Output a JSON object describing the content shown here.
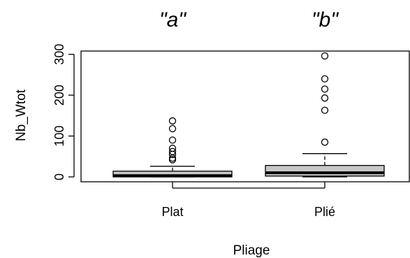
{
  "chart_data": {
    "type": "boxplot",
    "xlabel": "Pliage",
    "ylabel": "Nb_Wtot",
    "yticks": [
      0,
      100,
      200,
      300
    ],
    "ylim": [
      -12,
      308
    ],
    "grid": false,
    "colors": {
      "box_fill": "#c8c8c8",
      "line": "#000000"
    },
    "groups": [
      {
        "category": "Plat",
        "significance": "\"a\"",
        "min": 0,
        "q1": 0,
        "median": 3,
        "q3": 14,
        "max": 26,
        "outliers": [
          42,
          46,
          55,
          62,
          70,
          90,
          118,
          137
        ]
      },
      {
        "category": "Plié",
        "significance": "\"b\"",
        "min": 0,
        "q1": 2,
        "median": 10,
        "q3": 28,
        "max": 57,
        "outliers": [
          85,
          163,
          193,
          215,
          240,
          296
        ]
      }
    ]
  }
}
